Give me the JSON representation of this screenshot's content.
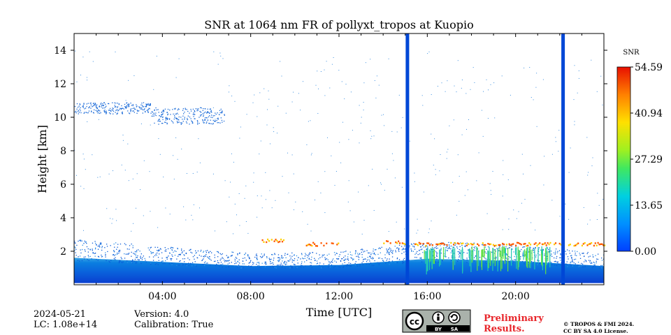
{
  "chart_data": {
    "type": "heatmap",
    "title": "SNR at 1064 nm FR of pollyxt_tropos at Kuopio",
    "xlabel": "Time [UTC]",
    "ylabel": "Height [km]",
    "xlim": [
      0,
      24
    ],
    "ylim": [
      0,
      15
    ],
    "x_ticks": [
      4,
      8,
      12,
      16,
      20
    ],
    "x_tick_labels": [
      "04:00",
      "08:00",
      "12:00",
      "16:00",
      "20:00"
    ],
    "y_ticks": [
      2,
      4,
      6,
      8,
      10,
      12,
      14
    ],
    "y_tick_labels": [
      "2",
      "4",
      "6",
      "8",
      "10",
      "12",
      "14"
    ],
    "colorbar": {
      "label": "SNR",
      "min": 0,
      "max": 54.59,
      "tick_values": [
        0,
        13.65,
        27.29,
        40.94,
        54.59
      ],
      "tick_labels": [
        "0.00",
        "13.65",
        "27.29",
        "40.94",
        "54.59"
      ]
    },
    "gaps_hours": [
      15.1,
      22.15
    ],
    "boundary_layer_top_km": [
      {
        "t": 0,
        "h": 2.6
      },
      {
        "t": 4,
        "h": 2.2
      },
      {
        "t": 8,
        "h": 1.8
      },
      {
        "t": 12,
        "h": 1.9
      },
      {
        "t": 16,
        "h": 2.5
      },
      {
        "t": 20,
        "h": 2.3
      },
      {
        "t": 24,
        "h": 1.8
      }
    ],
    "cloud_layers": [
      {
        "t0": 8.5,
        "t1": 9.5,
        "h": 2.6
      },
      {
        "t0": 10.5,
        "t1": 12.0,
        "h": 2.4
      },
      {
        "t0": 14.0,
        "t1": 15.0,
        "h": 2.5
      },
      {
        "t0": 15.3,
        "t1": 24.0,
        "h": 2.4
      }
    ],
    "cirrus": [
      {
        "t0": 0.0,
        "t1": 3.5,
        "h0": 10.2,
        "h1": 10.9
      },
      {
        "t0": 3.5,
        "t1": 6.8,
        "h0": 9.6,
        "h1": 10.6
      }
    ]
  },
  "footer": {
    "date": "2024-05-21",
    "lc": "LC: 1.08e+14",
    "version": "Version: 4.0",
    "calibration": "Calibration: True",
    "preliminary_line1": "Preliminary",
    "preliminary_line2": "Results.",
    "license_line1": "© TROPOS & FMI 2024.",
    "license_line2": "CC BY SA 4.0 License.",
    "badge_text": {
      "by": "BY",
      "sa": "SA"
    }
  },
  "colors": {
    "gap": "#0047d6",
    "data_low": "#0a5cd8",
    "data_mid": "#1ab3c9",
    "cloud": "#ff5a00"
  }
}
